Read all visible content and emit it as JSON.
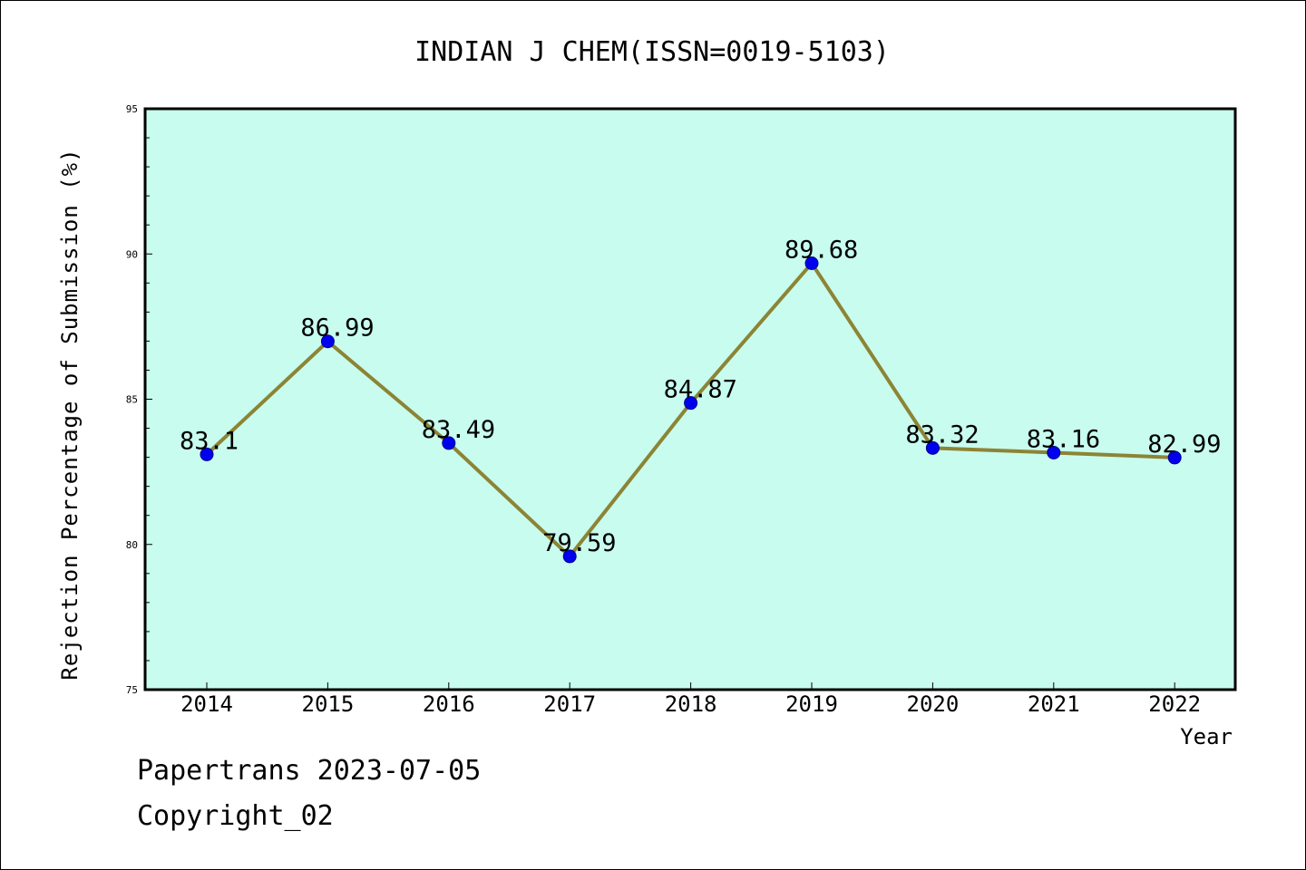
{
  "chart_data": {
    "type": "line",
    "title": "INDIAN J CHEM(ISSN=0019-5103)",
    "xlabel": "Year",
    "ylabel": "Rejection Percentage of Submission (%)",
    "categories": [
      "2014",
      "2015",
      "2016",
      "2017",
      "2018",
      "2019",
      "2020",
      "2021",
      "2022"
    ],
    "series": [
      {
        "name": "Rejection Percentage",
        "values": [
          83.1,
          86.99,
          83.49,
          79.59,
          84.87,
          89.68,
          83.32,
          83.16,
          82.99
        ]
      }
    ],
    "data_labels": [
      "83.1",
      "86.99",
      "83.49",
      "79.59",
      "84.87",
      "89.68",
      "83.32",
      "83.16",
      "82.99"
    ],
    "ylim": [
      75,
      95
    ],
    "yticks": [
      "75",
      "80",
      "85",
      "90",
      "95"
    ],
    "grid": false,
    "colors": {
      "plot_background": "#c8fcee",
      "line": "#8c8435",
      "marker": "#0000ee",
      "marker_edge": "#00008b"
    }
  },
  "footer": {
    "line1": "Papertrans 2023-07-05",
    "line2": "Copyright_02"
  }
}
